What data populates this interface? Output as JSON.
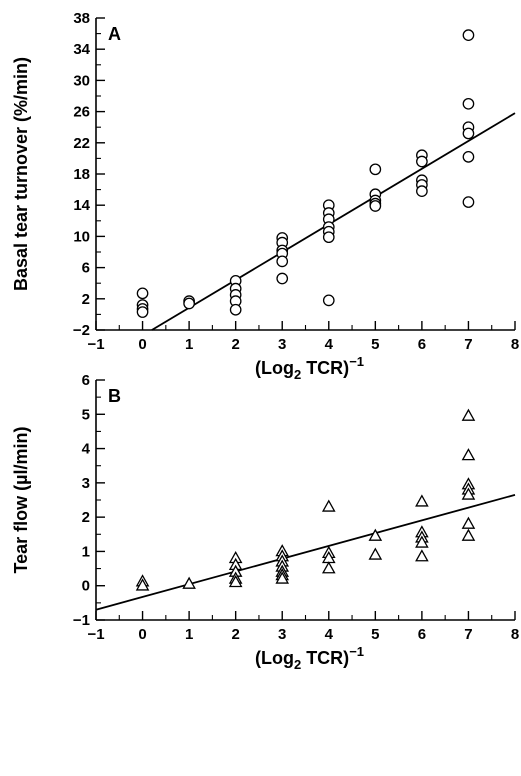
{
  "chart_data": [
    {
      "type": "scatter",
      "panel_label": "A",
      "marker": "circle",
      "xlabel": "(Log2 TCR)^-1",
      "ylabel": "Basal tear turnover (%/min)",
      "xlim": [
        -1,
        8
      ],
      "ylim": [
        -2,
        38
      ],
      "xticks": [
        -1,
        0,
        1,
        2,
        3,
        4,
        5,
        6,
        7,
        8
      ],
      "yticks": [
        -2,
        2,
        6,
        10,
        14,
        18,
        22,
        26,
        30,
        34,
        38
      ],
      "points": [
        {
          "x": 0,
          "y": 2.7
        },
        {
          "x": 0,
          "y": 1.2
        },
        {
          "x": 0,
          "y": 0.7
        },
        {
          "x": 0,
          "y": 0.3
        },
        {
          "x": 1,
          "y": 1.7
        },
        {
          "x": 1,
          "y": 1.4
        },
        {
          "x": 2,
          "y": 4.3
        },
        {
          "x": 2,
          "y": 3.3
        },
        {
          "x": 2,
          "y": 2.5
        },
        {
          "x": 2,
          "y": 1.7
        },
        {
          "x": 2,
          "y": 0.6
        },
        {
          "x": 3,
          "y": 9.8
        },
        {
          "x": 3,
          "y": 9.2
        },
        {
          "x": 3,
          "y": 8.2
        },
        {
          "x": 3,
          "y": 7.8
        },
        {
          "x": 3,
          "y": 6.8
        },
        {
          "x": 3,
          "y": 4.6
        },
        {
          "x": 4,
          "y": 14.0
        },
        {
          "x": 4,
          "y": 13.0
        },
        {
          "x": 4,
          "y": 12.2
        },
        {
          "x": 4,
          "y": 11.2
        },
        {
          "x": 4,
          "y": 10.6
        },
        {
          "x": 4,
          "y": 9.9
        },
        {
          "x": 4,
          "y": 1.8
        },
        {
          "x": 5,
          "y": 18.6
        },
        {
          "x": 5,
          "y": 15.4
        },
        {
          "x": 5,
          "y": 14.6
        },
        {
          "x": 5,
          "y": 14.2
        },
        {
          "x": 5,
          "y": 13.9
        },
        {
          "x": 6,
          "y": 20.4
        },
        {
          "x": 6,
          "y": 19.6
        },
        {
          "x": 6,
          "y": 17.2
        },
        {
          "x": 6,
          "y": 16.6
        },
        {
          "x": 6,
          "y": 15.8
        },
        {
          "x": 7,
          "y": 35.8
        },
        {
          "x": 7,
          "y": 27.0
        },
        {
          "x": 7,
          "y": 24.0
        },
        {
          "x": 7,
          "y": 23.2
        },
        {
          "x": 7,
          "y": 20.2
        },
        {
          "x": 7,
          "y": 14.4
        }
      ],
      "fit_line": {
        "x": [
          0.2,
          8
        ],
        "y": [
          -2,
          25.8
        ]
      }
    },
    {
      "type": "scatter",
      "panel_label": "B",
      "marker": "triangle",
      "xlabel": "(Log2 TCR)^-1",
      "ylabel": "Tear flow (µl/min)",
      "xlim": [
        -1,
        8
      ],
      "ylim": [
        -1,
        6
      ],
      "xticks": [
        -1,
        0,
        1,
        2,
        3,
        4,
        5,
        6,
        7,
        8
      ],
      "yticks": [
        -1,
        0,
        1,
        2,
        3,
        4,
        5,
        6
      ],
      "points": [
        {
          "x": 0,
          "y": 0.12
        },
        {
          "x": 0,
          "y": 0.0
        },
        {
          "x": 1,
          "y": 0.05
        },
        {
          "x": 2,
          "y": 0.8
        },
        {
          "x": 2,
          "y": 0.6
        },
        {
          "x": 2,
          "y": 0.4
        },
        {
          "x": 2,
          "y": 0.2
        },
        {
          "x": 2,
          "y": 0.1
        },
        {
          "x": 3,
          "y": 1.0
        },
        {
          "x": 3,
          "y": 0.85
        },
        {
          "x": 3,
          "y": 0.7
        },
        {
          "x": 3,
          "y": 0.55
        },
        {
          "x": 3,
          "y": 0.4
        },
        {
          "x": 3,
          "y": 0.3
        },
        {
          "x": 3,
          "y": 0.2
        },
        {
          "x": 4,
          "y": 2.3
        },
        {
          "x": 4,
          "y": 0.95
        },
        {
          "x": 4,
          "y": 0.8
        },
        {
          "x": 4,
          "y": 0.5
        },
        {
          "x": 5,
          "y": 1.45
        },
        {
          "x": 5,
          "y": 0.9
        },
        {
          "x": 6,
          "y": 2.45
        },
        {
          "x": 6,
          "y": 1.55
        },
        {
          "x": 6,
          "y": 1.4
        },
        {
          "x": 6,
          "y": 1.25
        },
        {
          "x": 6,
          "y": 0.85
        },
        {
          "x": 7,
          "y": 4.95
        },
        {
          "x": 7,
          "y": 3.8
        },
        {
          "x": 7,
          "y": 2.95
        },
        {
          "x": 7,
          "y": 2.8
        },
        {
          "x": 7,
          "y": 2.65
        },
        {
          "x": 7,
          "y": 1.8
        },
        {
          "x": 7,
          "y": 1.45
        }
      ],
      "fit_line": {
        "x": [
          -1,
          8
        ],
        "y": [
          -0.7,
          2.65
        ]
      }
    }
  ]
}
